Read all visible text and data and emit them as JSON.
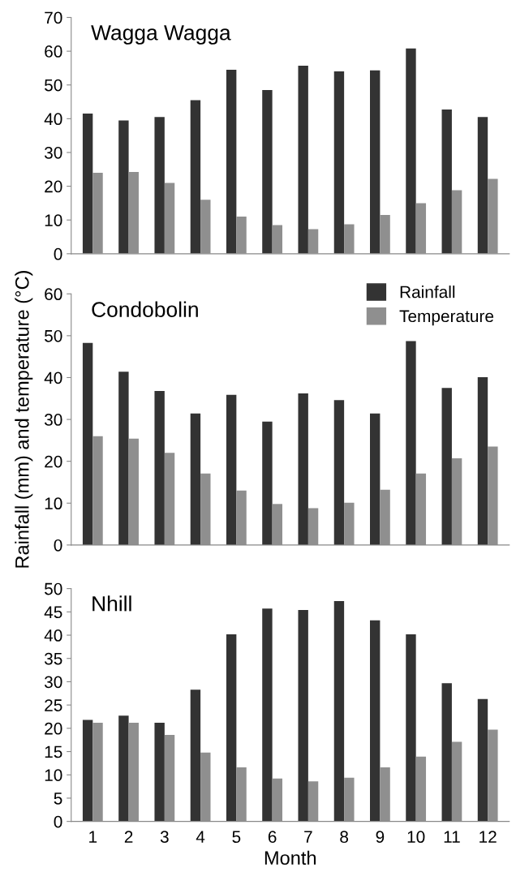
{
  "chart_data": [
    {
      "type": "bar",
      "title": "Wagga Wagga",
      "categories": [
        "1",
        "2",
        "3",
        "4",
        "5",
        "6",
        "7",
        "8",
        "9",
        "10",
        "11",
        "12"
      ],
      "ylim": [
        0,
        70
      ],
      "yticks": [
        0,
        10,
        20,
        30,
        40,
        50,
        60,
        70
      ],
      "tick_labels": "y",
      "grid": false,
      "legend": false,
      "series": [
        {
          "color": "#333333",
          "values": [
            41.5,
            39.5,
            40.5,
            45.5,
            54.5,
            48.5,
            55.7,
            54.0,
            54.3,
            60.8,
            42.7,
            40.5
          ]
        },
        {
          "color": "#8f8f8f",
          "values": [
            24.0,
            24.2,
            21.0,
            16.0,
            11.0,
            8.5,
            7.3,
            8.7,
            11.5,
            15.0,
            18.8,
            22.2
          ]
        }
      ]
    },
    {
      "type": "bar",
      "title": "Condobolin",
      "ylabel": "Rainfall (mm) and temperature (°C)",
      "categories": [
        "1",
        "2",
        "3",
        "4",
        "5",
        "6",
        "7",
        "8",
        "9",
        "10",
        "11",
        "12"
      ],
      "ylim": [
        0,
        60
      ],
      "yticks": [
        0,
        10,
        20,
        30,
        40,
        50,
        60
      ],
      "tick_labels": "y",
      "grid": false,
      "legend": "top right",
      "series": [
        {
          "name": "Rainfall",
          "color": "#333333",
          "values": [
            48.3,
            41.4,
            36.8,
            31.4,
            35.9,
            29.5,
            36.2,
            34.6,
            31.4,
            48.7,
            37.5,
            40.1
          ]
        },
        {
          "name": "Temperature",
          "color": "#8f8f8f",
          "values": [
            26.0,
            25.4,
            22.0,
            17.1,
            13.0,
            9.8,
            8.8,
            10.1,
            13.2,
            17.1,
            20.7,
            23.5
          ]
        }
      ]
    },
    {
      "type": "bar",
      "title": "Nhill",
      "xlabel": "Month",
      "categories": [
        "1",
        "2",
        "3",
        "4",
        "5",
        "6",
        "7",
        "8",
        "9",
        "10",
        "11",
        "12"
      ],
      "ylim": [
        0,
        50
      ],
      "yticks": [
        0,
        5,
        10,
        15,
        20,
        25,
        30,
        35,
        40,
        45,
        50
      ],
      "grid": false,
      "legend": false,
      "series": [
        {
          "color": "#333333",
          "values": [
            21.8,
            22.7,
            21.2,
            28.3,
            40.2,
            45.7,
            45.4,
            47.3,
            43.2,
            40.2,
            29.7,
            26.3
          ]
        },
        {
          "color": "#8f8f8f",
          "values": [
            21.2,
            21.2,
            18.6,
            14.8,
            11.6,
            9.2,
            8.6,
            9.4,
            11.6,
            13.9,
            17.1,
            19.7
          ]
        }
      ]
    }
  ]
}
